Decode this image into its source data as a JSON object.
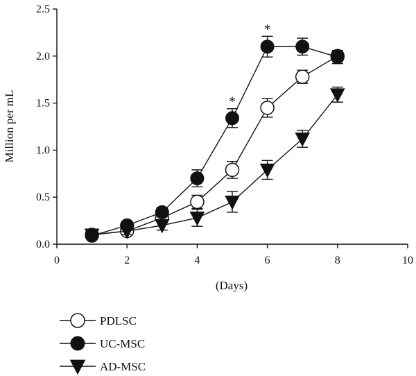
{
  "chart_data": {
    "type": "line",
    "title": "",
    "xlabel": "(Days)",
    "ylabel": "Million per mL",
    "xlim": [
      0,
      10
    ],
    "ylim": [
      0,
      2.5
    ],
    "x_ticks": [
      0,
      2,
      4,
      6,
      8,
      10
    ],
    "y_ticks": [
      0.0,
      0.5,
      1.0,
      1.5,
      2.0,
      2.5
    ],
    "x_tick_labels": [
      "0",
      "2",
      "4",
      "6",
      "8",
      "10"
    ],
    "y_tick_labels": [
      "0.0",
      "0.5",
      "1.0",
      "1.5",
      "2.0",
      "2.5"
    ],
    "grid": false,
    "legend_position": "bottom-left",
    "series": [
      {
        "name": "PDLSC",
        "marker": "open-circle",
        "x": [
          1,
          2,
          3,
          4,
          5,
          6,
          7,
          8
        ],
        "y": [
          0.1,
          0.14,
          0.28,
          0.45,
          0.79,
          1.45,
          1.78,
          2.0
        ],
        "err": [
          0.04,
          0.04,
          0.05,
          0.07,
          0.09,
          0.1,
          0.07,
          0.06
        ]
      },
      {
        "name": "UC-MSC",
        "marker": "filled-circle",
        "x": [
          1,
          2,
          3,
          4,
          5,
          6,
          7,
          8
        ],
        "y": [
          0.09,
          0.2,
          0.34,
          0.7,
          1.34,
          2.1,
          2.1,
          1.99
        ],
        "err": [
          0.03,
          0.04,
          0.05,
          0.09,
          0.1,
          0.11,
          0.09,
          0.07
        ]
      },
      {
        "name": "AD-MSC",
        "marker": "filled-triangle-down",
        "x": [
          1,
          2,
          3,
          4,
          5,
          6,
          7,
          8
        ],
        "y": [
          0.1,
          0.14,
          0.2,
          0.28,
          0.45,
          0.79,
          1.12,
          1.59
        ],
        "err": [
          0.04,
          0.04,
          0.05,
          0.09,
          0.11,
          0.1,
          0.09,
          0.08
        ]
      }
    ],
    "annotations": [
      {
        "text": "*",
        "x": 5,
        "series": "UC-MSC"
      },
      {
        "text": "*",
        "x": 6,
        "series": "UC-MSC"
      }
    ]
  }
}
